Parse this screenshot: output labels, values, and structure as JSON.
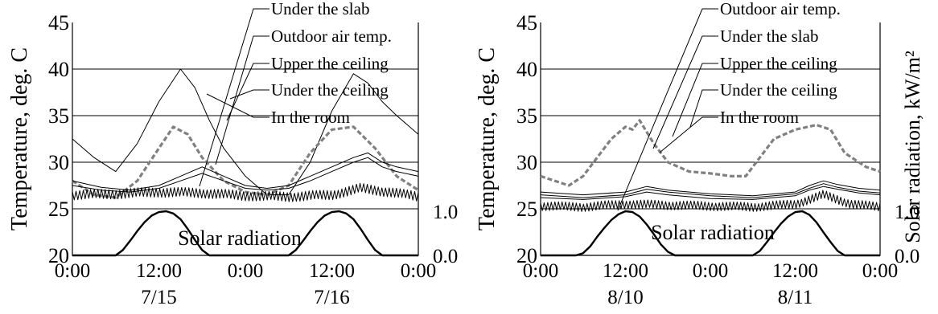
{
  "chart_data": [
    {
      "type": "line",
      "ylabel": "Temperature, deg. C",
      "y2label": "",
      "ylim": [
        20,
        45
      ],
      "yticks": [
        "20",
        "25",
        "30",
        "35",
        "40",
        "45"
      ],
      "y2lim": [
        0,
        1
      ],
      "y2ticks": [
        "0.0",
        "1.0"
      ],
      "xlim": [
        0,
        48
      ],
      "xticks": [
        {
          "x": 0,
          "l1": "0:00",
          "l2": ""
        },
        {
          "x": 12,
          "l1": "12:00",
          "l2": "7/15"
        },
        {
          "x": 24,
          "l1": "0:00",
          "l2": ""
        },
        {
          "x": 36,
          "l1": "12:00",
          "l2": "7/16"
        },
        {
          "x": 48,
          "l1": "0:00",
          "l2": ""
        }
      ],
      "grid": "horizontal",
      "annotation": "Solar radiation",
      "legend": [
        "Under the slab",
        "Outdoor air temp.",
        "Upper the ceiling",
        "Under the ceiling",
        "In the room"
      ],
      "series": [
        {
          "name": "Outdoor air temp.",
          "style": "thin",
          "x": [
            0,
            3,
            6,
            9,
            12,
            15,
            17,
            19,
            21,
            24,
            27,
            30,
            33,
            36,
            39,
            41,
            43,
            45,
            48
          ],
          "y": [
            32.5,
            30.5,
            29,
            32,
            36.5,
            40,
            38,
            34.5,
            31.5,
            28.5,
            26.5,
            26.5,
            30,
            35.5,
            39.5,
            38.5,
            36.5,
            35,
            33
          ]
        },
        {
          "name": "Under the slab",
          "style": "dashed",
          "x": [
            0,
            3,
            6,
            9,
            12,
            14,
            16,
            18,
            21,
            24,
            27,
            30,
            33,
            36,
            39,
            42,
            45,
            48
          ],
          "y": [
            28,
            26.5,
            26.2,
            28,
            31.5,
            33.8,
            33,
            30.5,
            28,
            26.8,
            26.5,
            27.5,
            31,
            33.5,
            33.8,
            31.5,
            28.5,
            27
          ]
        },
        {
          "name": "Upper the ceiling",
          "style": "thin",
          "x": [
            0,
            4,
            8,
            12,
            15,
            18,
            21,
            24,
            27,
            30,
            33,
            36,
            39,
            41,
            43,
            45,
            48
          ],
          "y": [
            28,
            27.3,
            27,
            27.5,
            28.5,
            29.5,
            28.5,
            27.5,
            27.2,
            27.5,
            28.5,
            29.5,
            30.5,
            31,
            30,
            29.5,
            29
          ]
        },
        {
          "name": "Under the ceiling",
          "style": "thin",
          "x": [
            0,
            4,
            8,
            12,
            15,
            18,
            21,
            24,
            27,
            30,
            33,
            36,
            39,
            41,
            43,
            45,
            48
          ],
          "y": [
            27.5,
            27,
            26.8,
            27.2,
            28,
            28.8,
            28,
            27.2,
            27,
            27.2,
            28,
            29,
            30,
            30.5,
            29.5,
            29,
            28.5
          ]
        },
        {
          "name": "In the room",
          "style": "jagged",
          "x": [
            0,
            6,
            12,
            18,
            24,
            30,
            36,
            40,
            44,
            48
          ],
          "y": [
            26.5,
            26.6,
            26.8,
            26.7,
            26.4,
            26.3,
            26.5,
            27.2,
            26.8,
            26.3
          ],
          "amp": 0.55
        },
        {
          "name": "Solar radiation",
          "style": "thick",
          "axis": "y2",
          "x": [
            0,
            6,
            7,
            8,
            9,
            10,
            11,
            12,
            13,
            14,
            15,
            16,
            17,
            18,
            19,
            24,
            30,
            31,
            32,
            33,
            34,
            35,
            36,
            37,
            38,
            39,
            40,
            41,
            42,
            43,
            48
          ],
          "y": [
            0,
            0,
            0.12,
            0.33,
            0.55,
            0.75,
            0.9,
            0.98,
            1.0,
            0.95,
            0.82,
            0.6,
            0.35,
            0.12,
            0,
            0,
            0,
            0.12,
            0.33,
            0.55,
            0.75,
            0.9,
            0.98,
            1.0,
            0.95,
            0.82,
            0.6,
            0.35,
            0.12,
            0,
            0
          ]
        }
      ]
    },
    {
      "type": "line",
      "ylabel": "Temperature, deg. C",
      "y2label": "Solar radiation, kW/m²",
      "ylim": [
        20,
        45
      ],
      "yticks": [
        "20",
        "25",
        "30",
        "35",
        "40",
        "45"
      ],
      "y2lim": [
        0,
        1
      ],
      "y2ticks": [
        "0.0",
        "1.0"
      ],
      "xlim": [
        0,
        48
      ],
      "xticks": [
        {
          "x": 0,
          "l1": "0:00",
          "l2": ""
        },
        {
          "x": 12,
          "l1": "12:00",
          "l2": "8/10"
        },
        {
          "x": 24,
          "l1": "0:00",
          "l2": ""
        },
        {
          "x": 36,
          "l1": "12:00",
          "l2": "8/11"
        },
        {
          "x": 48,
          "l1": "0:00",
          "l2": ""
        }
      ],
      "grid": "horizontal",
      "annotation": "Solar radiation",
      "legend": [
        "Outdoor air temp.",
        "Under the slab",
        "Upper the ceiling",
        "Under the ceiling",
        "In the room"
      ],
      "series": [
        {
          "name": "Outdoor air temp.",
          "style": "jagged",
          "x": [
            0,
            6,
            12,
            18,
            24,
            30,
            36,
            40,
            44,
            48
          ],
          "y": [
            25.3,
            25.2,
            25.5,
            25.4,
            25.3,
            25.2,
            25.5,
            26.5,
            25.5,
            25.2
          ],
          "amp": 0.5
        },
        {
          "name": "Under the slab",
          "style": "dashed",
          "x": [
            0,
            2,
            4,
            6,
            8,
            10,
            12,
            13,
            14,
            16,
            18,
            21,
            24,
            27,
            29,
            31,
            33,
            36,
            39,
            41,
            43,
            46,
            48
          ],
          "y": [
            28.5,
            28,
            27.5,
            28.5,
            30.5,
            32.5,
            33.8,
            33.5,
            34.5,
            32,
            30,
            29,
            28.8,
            28.5,
            28.5,
            30.5,
            32.5,
            33.5,
            34,
            33.5,
            31,
            29.5,
            29
          ]
        },
        {
          "name": "Upper the ceiling",
          "style": "thin",
          "x": [
            0,
            6,
            12,
            15,
            18,
            24,
            30,
            36,
            38,
            40,
            42,
            45,
            48
          ],
          "y": [
            26.8,
            26.5,
            26.8,
            27.4,
            27,
            26.6,
            26.4,
            26.8,
            27.5,
            28,
            27.6,
            27.2,
            27
          ]
        },
        {
          "name": "Under the ceiling",
          "style": "thin",
          "x": [
            0,
            6,
            12,
            15,
            18,
            24,
            30,
            36,
            38,
            40,
            42,
            45,
            48
          ],
          "y": [
            26.5,
            26.2,
            26.5,
            27.1,
            26.8,
            26.4,
            26.2,
            26.6,
            27.2,
            27.7,
            27.3,
            26.9,
            26.7
          ]
        },
        {
          "name": "In the room",
          "style": "thin",
          "x": [
            0,
            6,
            12,
            15,
            18,
            24,
            30,
            36,
            38,
            40,
            42,
            45,
            48
          ],
          "y": [
            26.2,
            26,
            26.3,
            26.8,
            26.5,
            26.1,
            26,
            26.4,
            27,
            27.4,
            27.1,
            26.7,
            26.5
          ]
        },
        {
          "name": "Solar radiation",
          "style": "thick",
          "axis": "y2",
          "x": [
            0,
            5,
            6,
            7,
            8,
            9,
            10,
            11,
            12,
            13,
            14,
            15,
            16,
            17,
            18,
            19,
            24,
            30,
            31,
            32,
            33,
            34,
            35,
            36,
            37,
            38,
            39,
            40,
            41,
            42,
            43,
            48
          ],
          "y": [
            0,
            0,
            0.05,
            0.2,
            0.42,
            0.62,
            0.8,
            0.93,
            1.0,
            0.98,
            0.88,
            0.7,
            0.48,
            0.25,
            0.08,
            0,
            0,
            0,
            0.1,
            0.3,
            0.52,
            0.72,
            0.88,
            0.98,
            1.0,
            0.92,
            0.75,
            0.52,
            0.3,
            0.1,
            0,
            0
          ]
        }
      ]
    }
  ]
}
